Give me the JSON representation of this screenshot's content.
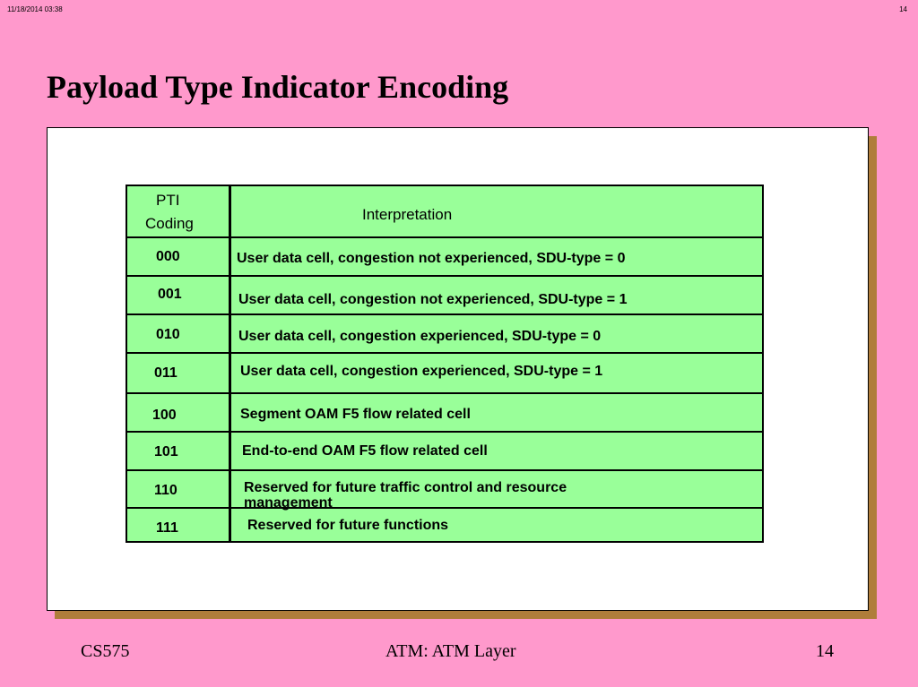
{
  "meta": {
    "date": "11/18/2014  03:38",
    "page": "14"
  },
  "title": "Payload Type Indicator Encoding",
  "table": {
    "header_code_line1": "PTI",
    "header_code_line2": "Coding",
    "header_interpretation": "Interpretation",
    "rows": [
      {
        "code": "000",
        "text": "User data cell, congestion not experienced, SDU-type = 0"
      },
      {
        "code": "001",
        "text": "User data cell, congestion not experienced, SDU-type = 1"
      },
      {
        "code": "010",
        "text": "User data cell, congestion experienced, SDU-type = 0"
      },
      {
        "code": "011",
        "text": "User data cell, congestion experienced, SDU-type = 1"
      },
      {
        "code": "100",
        "text": "Segment OAM F5 flow related cell"
      },
      {
        "code": "101",
        "text": "End-to-end OAM F5 flow related cell"
      },
      {
        "code": "110",
        "text": "Reserved for future traffic control and resource management"
      },
      {
        "code": "111",
        "text": "Reserved for future functions"
      }
    ]
  },
  "footer": {
    "left": "CS575",
    "center": "ATM: ATM Layer",
    "right": "14"
  },
  "colors": {
    "background": "#ff99cc",
    "table_fill": "#99ff99",
    "shadow": "#b07d3a"
  }
}
